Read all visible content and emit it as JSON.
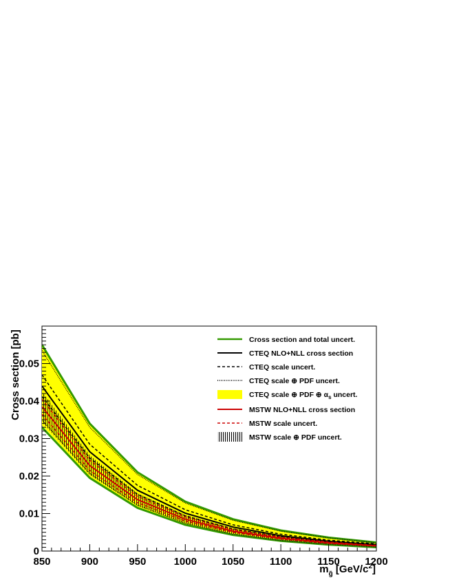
{
  "chart_data": {
    "type": "line",
    "title": "",
    "xlabel": "m_g̃ [GeV/c²]",
    "xlabel_parts": {
      "main": "m",
      "sub": "g̃",
      "rest": " [GeV/c",
      "sup": "2",
      "end": "]"
    },
    "ylabel": "Cross section [pb]",
    "xlim": [
      850,
      1200
    ],
    "ylim": [
      0,
      0.06
    ],
    "x_ticks": [
      "850",
      "900",
      "950",
      "1000",
      "1050",
      "1100",
      "1150",
      "1200"
    ],
    "y_ticks": [
      "0",
      "0.01",
      "0.02",
      "0.03",
      "0.04",
      "0.05"
    ],
    "x": [
      850,
      900,
      950,
      1000,
      1050,
      1100,
      1150,
      1200
    ],
    "grid": false,
    "legend_position": "top-right",
    "legend": [
      {
        "label": "Cross section and total uncert.",
        "style": "green-line"
      },
      {
        "label": "CTEQ NLO+NLL cross section",
        "style": "black-solid"
      },
      {
        "label": "CTEQ scale uncert.",
        "style": "black-dashed"
      },
      {
        "label": "CTEQ scale ⊕ PDF uncert.",
        "style": "black-dotted"
      },
      {
        "label": "CTEQ scale ⊕ PDF ⊕ α_s uncert.",
        "label_main": "CTEQ scale ⊕ PDF ⊕ α",
        "label_sub": "s",
        "label_end": " uncert.",
        "style": "yellow-band"
      },
      {
        "label": "MSTW NLO+NLL cross section",
        "style": "red-solid"
      },
      {
        "label": "MSTW scale uncert.",
        "style": "red-dashed"
      },
      {
        "label": "MSTW scale ⊕ PDF uncert.",
        "style": "hatched-band"
      }
    ],
    "series": [
      {
        "name": "Cross section and total uncert.",
        "role": "total_upper",
        "values": [
          0.055,
          0.034,
          0.021,
          0.0132,
          0.0085,
          0.0055,
          0.0036,
          0.0023
        ]
      },
      {
        "name": "Cross section and total uncert.",
        "role": "total_lower",
        "values": [
          0.033,
          0.0195,
          0.0115,
          0.007,
          0.0043,
          0.0027,
          0.0017,
          0.001
        ]
      },
      {
        "name": "CTEQ NLO+NLL cross section",
        "role": "cteq_central",
        "values": [
          0.044,
          0.0265,
          0.0162,
          0.0101,
          0.0064,
          0.0041,
          0.0026,
          0.0017
        ]
      },
      {
        "name": "CTEQ scale uncert.",
        "role": "cteq_scale_upper",
        "values": [
          0.047,
          0.0285,
          0.0175,
          0.011,
          0.007,
          0.0045,
          0.0029,
          0.0019
        ]
      },
      {
        "name": "CTEQ scale uncert.",
        "role": "cteq_scale_lower",
        "values": [
          0.0412,
          0.0248,
          0.0151,
          0.0094,
          0.0059,
          0.0038,
          0.0024,
          0.0015
        ]
      },
      {
        "name": "CTEQ scale ⊕ PDF uncert.",
        "role": "cteq_pdf_upper",
        "values": [
          0.0535,
          0.033,
          0.0204,
          0.0128,
          0.0082,
          0.0053,
          0.0035,
          0.0022
        ]
      },
      {
        "name": "CTEQ scale ⊕ PDF uncert.",
        "role": "cteq_pdf_lower",
        "values": [
          0.035,
          0.0207,
          0.0122,
          0.0074,
          0.0045,
          0.0028,
          0.0018,
          0.0011
        ]
      },
      {
        "name": "CTEQ scale ⊕ PDF ⊕ α_s uncert.",
        "role": "cteq_alphas_upper",
        "values": [
          0.0548,
          0.0338,
          0.0209,
          0.0131,
          0.0084,
          0.0054,
          0.0036,
          0.0023
        ]
      },
      {
        "name": "CTEQ scale ⊕ PDF ⊕ α_s uncert.",
        "role": "cteq_alphas_lower",
        "values": [
          0.0335,
          0.0198,
          0.0117,
          0.0071,
          0.0044,
          0.0027,
          0.0017,
          0.001
        ]
      },
      {
        "name": "MSTW NLO+NLL cross section",
        "role": "mstw_central",
        "values": [
          0.0385,
          0.0228,
          0.0137,
          0.0085,
          0.0053,
          0.0034,
          0.0022,
          0.0014
        ]
      },
      {
        "name": "MSTW scale uncert.",
        "role": "mstw_scale_upper",
        "values": [
          0.0405,
          0.0242,
          0.0146,
          0.0091,
          0.0057,
          0.0037,
          0.0024,
          0.0015
        ]
      },
      {
        "name": "MSTW scale uncert.",
        "role": "mstw_scale_lower",
        "values": [
          0.0365,
          0.0215,
          0.0129,
          0.008,
          0.005,
          0.0032,
          0.002,
          0.0013
        ]
      },
      {
        "name": "MSTW scale ⊕ PDF uncert.",
        "role": "mstw_pdf_upper",
        "values": [
          0.0425,
          0.0255,
          0.0154,
          0.0096,
          0.006,
          0.0039,
          0.0025,
          0.0016
        ]
      },
      {
        "name": "MSTW scale ⊕ PDF uncert.",
        "role": "mstw_pdf_lower",
        "values": [
          0.0345,
          0.0203,
          0.0121,
          0.0074,
          0.0046,
          0.0029,
          0.0019,
          0.0012
        ]
      }
    ],
    "colors": {
      "yellow_band": "#ffff00",
      "green": "#339900",
      "black": "#000000",
      "red": "#cc0000"
    }
  }
}
